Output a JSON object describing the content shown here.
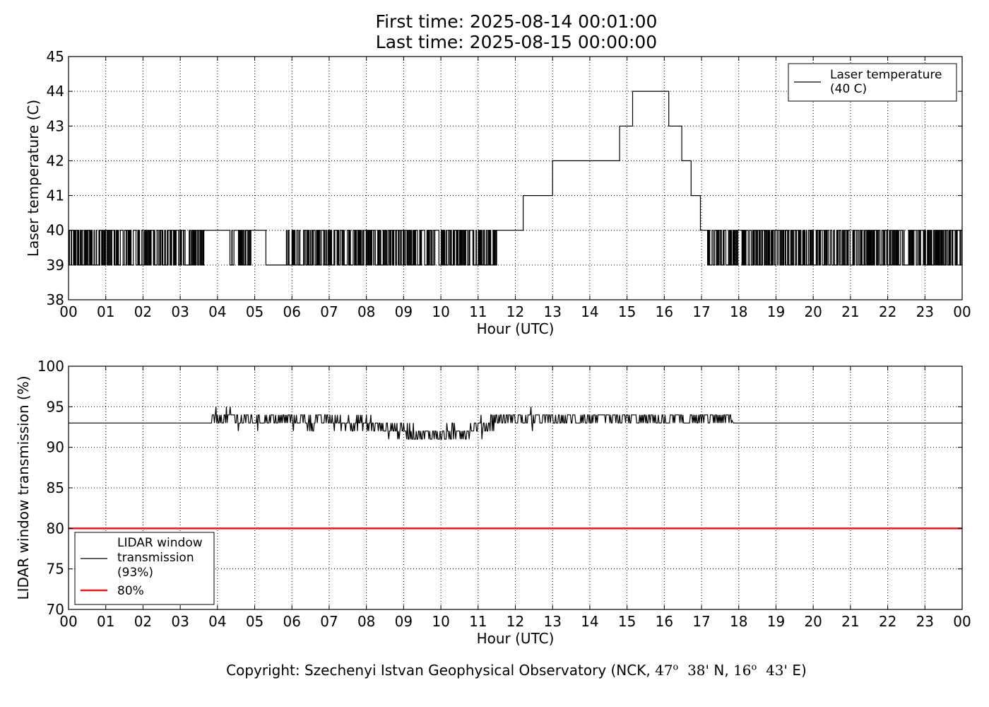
{
  "title": {
    "line1": "First time: 2025-08-14 00:01:00",
    "line2": "Last time: 2025-08-15 00:00:00"
  },
  "copyright": {
    "prefix": "Copyright: Szechenyi Istvan Geophysical Observatory (NCK,",
    "lat_deg": "47",
    "lat_min": "38'",
    "lat_dir": "N,",
    "lon_deg": "16",
    "lon_min": "43'",
    "lon_suffix": "E)",
    "degree_sign": "o"
  },
  "colors": {
    "series": "#000000",
    "threshold": "#e41a1c",
    "grid": "#000000",
    "background": "#ffffff"
  },
  "chart_data": [
    {
      "type": "line",
      "title": "",
      "xlabel": "Hour (UTC)",
      "ylabel": "Laser temperature (C)",
      "xlim": [
        0,
        24
      ],
      "ylim": [
        38,
        45
      ],
      "xticks": [
        "00",
        "01",
        "02",
        "03",
        "04",
        "05",
        "06",
        "07",
        "08",
        "09",
        "10",
        "11",
        "12",
        "13",
        "14",
        "15",
        "16",
        "17",
        "18",
        "19",
        "20",
        "21",
        "22",
        "23",
        "00"
      ],
      "yticks": [
        "38",
        "39",
        "40",
        "41",
        "42",
        "43",
        "44",
        "45"
      ],
      "grid": true,
      "legend": {
        "placement": "top-right",
        "entries": [
          "Laser temperature (40 C)"
        ]
      },
      "series": [
        {
          "name": "Laser temperature (40 C)",
          "style": "black thin line, rapidly flickering between 39 and 40 in noisy periods",
          "x": [
            0.0,
            3.65,
            3.7,
            4.3,
            4.55,
            5.3,
            5.9,
            6.0,
            11.5,
            12.2,
            12.21,
            12.95,
            13.0,
            14.75,
            14.8,
            15.13,
            15.15,
            16.1,
            16.12,
            16.45,
            16.47,
            16.7,
            16.72,
            16.95,
            16.97,
            17.15,
            24.0
          ],
          "y": [
            39.5,
            39.5,
            40,
            39.5,
            39.5,
            39,
            39.5,
            39.5,
            40,
            40,
            41,
            41,
            42,
            42,
            43,
            43,
            44,
            44,
            43,
            43,
            42,
            42,
            41,
            41,
            40,
            39.5,
            39.5
          ],
          "noise_band": [
            [
              0.0,
              3.65,
              39,
              40
            ],
            [
              4.3,
              4.9,
              39,
              40
            ],
            [
              5.85,
              11.5,
              39,
              40
            ],
            [
              17.15,
              24.0,
              39,
              40
            ]
          ]
        }
      ]
    },
    {
      "type": "line",
      "title": "",
      "xlabel": "Hour (UTC)",
      "ylabel": "LIDAR window transmission (%)",
      "xlim": [
        0,
        24
      ],
      "ylim": [
        70,
        100
      ],
      "xticks": [
        "00",
        "01",
        "02",
        "03",
        "04",
        "05",
        "06",
        "07",
        "08",
        "09",
        "10",
        "11",
        "12",
        "13",
        "14",
        "15",
        "16",
        "17",
        "18",
        "19",
        "20",
        "21",
        "22",
        "23",
        "00"
      ],
      "yticks": [
        "70",
        "75",
        "80",
        "85",
        "90",
        "95",
        "100"
      ],
      "grid": true,
      "legend": {
        "placement": "lower-left",
        "entries": [
          "LIDAR window transmission (93%)",
          "80%"
        ]
      },
      "series": [
        {
          "name": "LIDAR window transmission (93%)",
          "x": [
            0.0,
            3.85,
            3.9,
            5.0,
            6.0,
            7.0,
            8.0,
            8.5,
            9.0,
            9.5,
            10.0,
            10.5,
            11.0,
            11.5,
            12.0,
            13.0,
            14.0,
            15.0,
            16.0,
            17.0,
            17.8,
            17.85,
            24.0
          ],
          "y": [
            93,
            93,
            93.6,
            93.5,
            93.4,
            93.3,
            93.0,
            92.5,
            92.2,
            91.5,
            91.5,
            92.0,
            92.5,
            93.5,
            93.6,
            93.5,
            93.5,
            93.5,
            93.5,
            93.5,
            93.5,
            93,
            93
          ],
          "noise_band": [
            [
              3.85,
              17.8,
              1.0
            ]
          ]
        },
        {
          "name": "80%",
          "x": [
            0,
            24
          ],
          "y": [
            80,
            80
          ]
        }
      ]
    }
  ]
}
